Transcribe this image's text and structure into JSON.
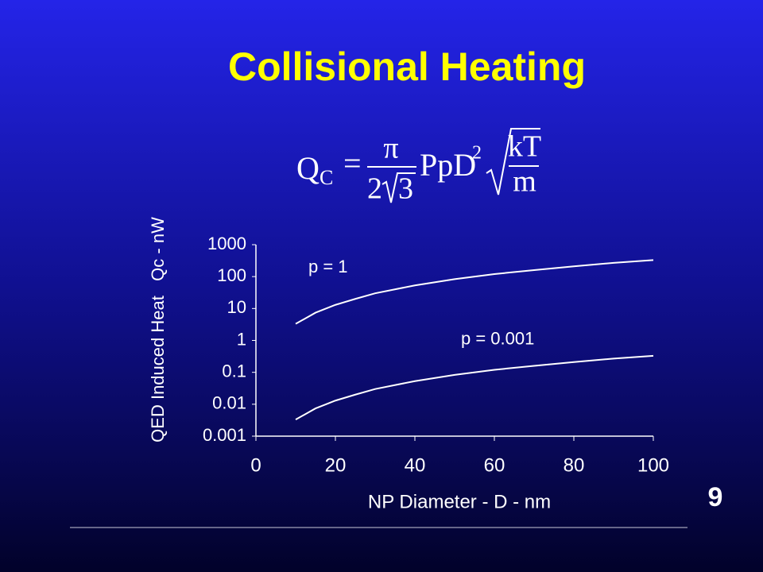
{
  "slide": {
    "title": "Collisional Heating",
    "page_number": "9",
    "formula": {
      "lhs": "Q",
      "lhs_subscript": "C",
      "equals": "=",
      "numerator": "π",
      "denominator_coefficient": "2",
      "denominator_radicand": "3",
      "factor": "PpD",
      "exponent": "2",
      "root_numerator": "kT",
      "root_denominator": "m"
    }
  },
  "chart_data": {
    "type": "line",
    "x_label": "NP Diameter - D - nm",
    "y_label": "QED Induced Heat   Qc - nW",
    "xlim": [
      0,
      100
    ],
    "xticks": [
      0,
      20,
      40,
      60,
      80,
      100
    ],
    "ylim": [
      0.001,
      1000
    ],
    "yticks": [
      1000,
      100,
      10,
      1,
      0.1,
      0.01,
      0.001
    ],
    "log_y": true,
    "grid": false,
    "x": [
      10,
      15,
      20,
      25,
      30,
      40,
      50,
      60,
      70,
      80,
      90,
      100
    ],
    "series": [
      {
        "name": "p = 1",
        "color": "#ffffff",
        "values": [
          3.3,
          7.4,
          13,
          20,
          30,
          53,
          83,
          120,
          160,
          210,
          270,
          330
        ]
      },
      {
        "name": "p = 0.001",
        "color": "#ffffff",
        "values": [
          0.0033,
          0.0074,
          0.013,
          0.02,
          0.03,
          0.053,
          0.083,
          0.12,
          0.16,
          0.21,
          0.27,
          0.33
        ]
      }
    ]
  }
}
